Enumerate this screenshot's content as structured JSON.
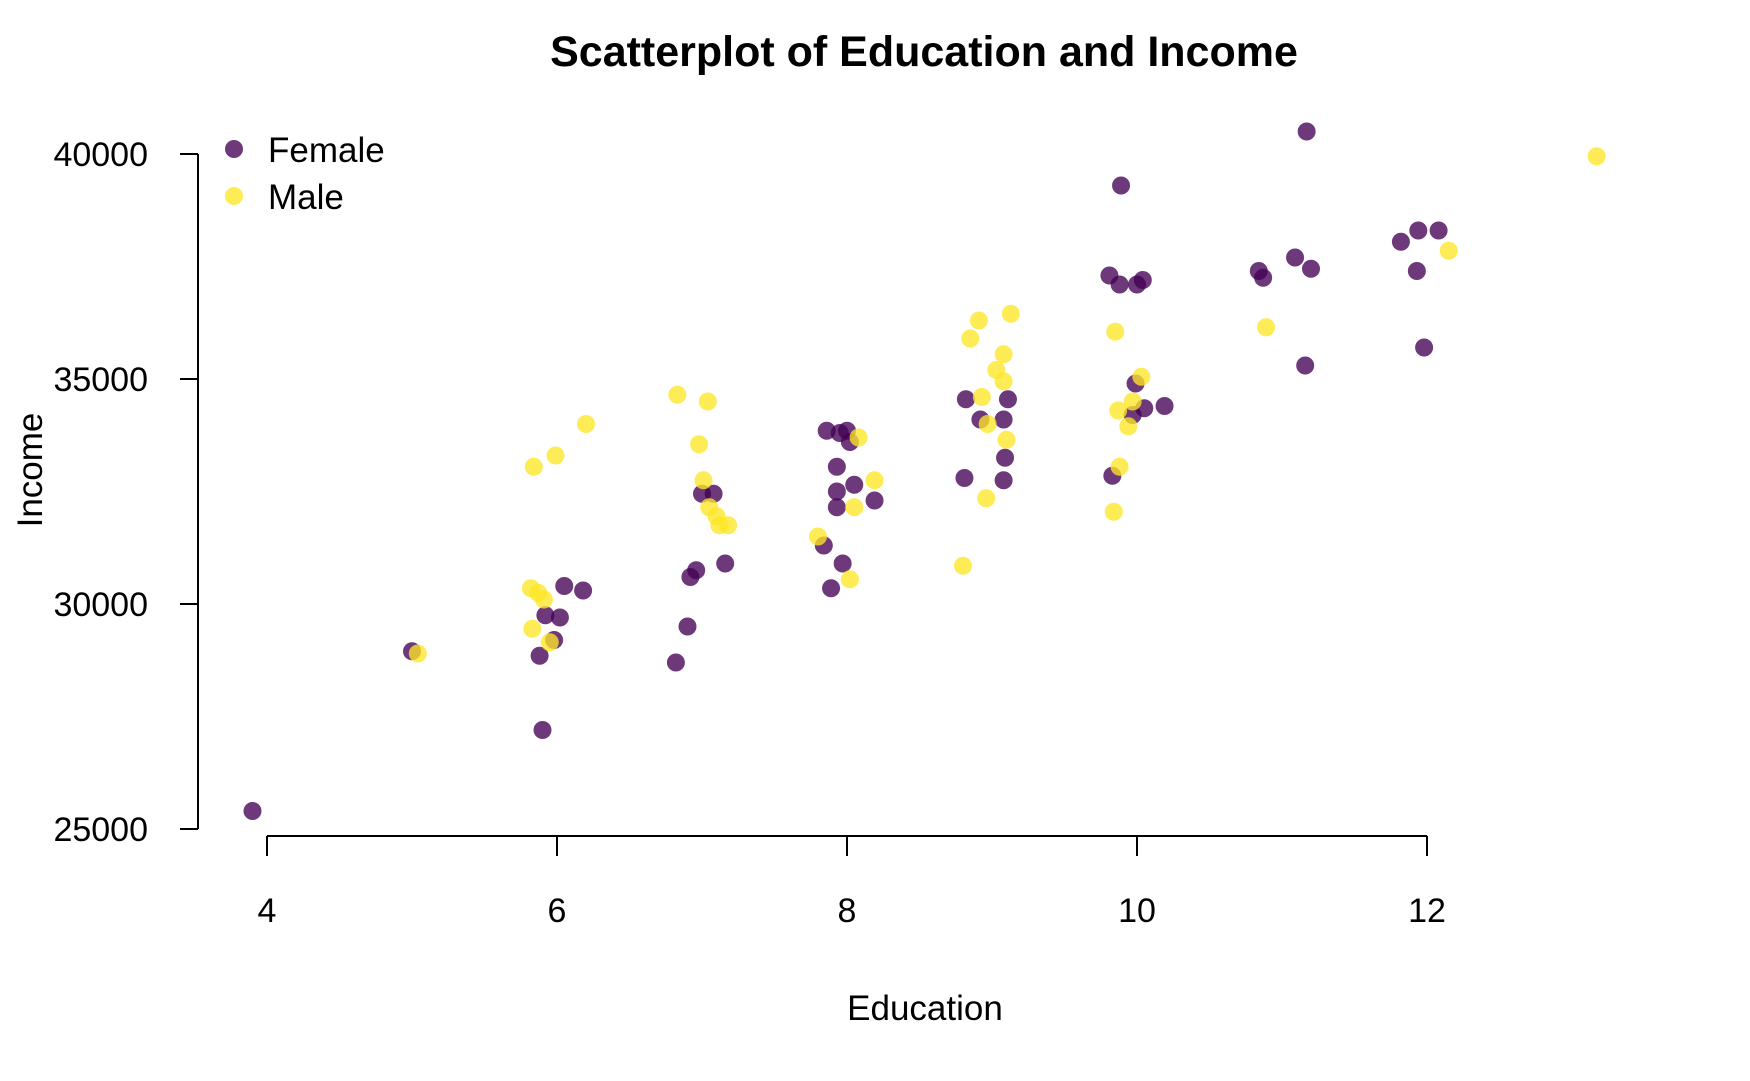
{
  "chart_data": {
    "type": "scatter",
    "title": "Scatterplot of Education and Income",
    "xlabel": "Education",
    "ylabel": "Income",
    "xlim": [
      3.8,
      13.4
    ],
    "ylim": [
      24900,
      41000
    ],
    "x_ticks": [
      4,
      6,
      8,
      10,
      12
    ],
    "y_ticks": [
      25000,
      30000,
      35000,
      40000
    ],
    "legend": {
      "position": "top-left"
    },
    "grid": false,
    "series": [
      {
        "name": "Female",
        "color": "#440154",
        "points": [
          [
            3.9,
            25400
          ],
          [
            5.0,
            28950
          ],
          [
            5.88,
            28850
          ],
          [
            5.9,
            27200
          ],
          [
            5.92,
            29750
          ],
          [
            5.98,
            29200
          ],
          [
            6.02,
            29700
          ],
          [
            6.05,
            30400
          ],
          [
            6.18,
            30300
          ],
          [
            6.82,
            28700
          ],
          [
            6.9,
            29500
          ],
          [
            6.92,
            30600
          ],
          [
            6.96,
            30750
          ],
          [
            7.0,
            32450
          ],
          [
            7.08,
            32450
          ],
          [
            7.16,
            30900
          ],
          [
            7.84,
            31300
          ],
          [
            7.86,
            33850
          ],
          [
            7.89,
            30350
          ],
          [
            7.93,
            32150
          ],
          [
            7.93,
            32500
          ],
          [
            7.93,
            33050
          ],
          [
            7.95,
            33800
          ],
          [
            7.97,
            30900
          ],
          [
            8.0,
            33850
          ],
          [
            8.02,
            33600
          ],
          [
            8.05,
            32650
          ],
          [
            8.19,
            32300
          ],
          [
            8.81,
            32800
          ],
          [
            8.82,
            34550
          ],
          [
            8.92,
            34100
          ],
          [
            9.08,
            32750
          ],
          [
            9.08,
            34100
          ],
          [
            9.09,
            33250
          ],
          [
            9.11,
            34550
          ],
          [
            9.81,
            37300
          ],
          [
            9.83,
            32850
          ],
          [
            9.88,
            37100
          ],
          [
            9.89,
            39300
          ],
          [
            9.97,
            34200
          ],
          [
            9.99,
            34900
          ],
          [
            10.0,
            37100
          ],
          [
            10.04,
            37200
          ],
          [
            10.05,
            34350
          ],
          [
            10.19,
            34400
          ],
          [
            10.84,
            37400
          ],
          [
            10.87,
            37250
          ],
          [
            11.09,
            37700
          ],
          [
            11.16,
            35300
          ],
          [
            11.17,
            40500
          ],
          [
            11.2,
            37450
          ],
          [
            11.82,
            38050
          ],
          [
            11.93,
            37400
          ],
          [
            11.94,
            38300
          ],
          [
            11.98,
            35700
          ],
          [
            12.08,
            38300
          ]
        ]
      },
      {
        "name": "Male",
        "color": "#FDE725",
        "points": [
          [
            5.04,
            28900
          ],
          [
            5.82,
            30350
          ],
          [
            5.83,
            29450
          ],
          [
            5.84,
            33050
          ],
          [
            5.87,
            30250
          ],
          [
            5.91,
            30100
          ],
          [
            5.95,
            29150
          ],
          [
            5.99,
            33300
          ],
          [
            6.2,
            34000
          ],
          [
            6.83,
            34650
          ],
          [
            6.98,
            33550
          ],
          [
            7.01,
            32750
          ],
          [
            7.04,
            34500
          ],
          [
            7.05,
            32150
          ],
          [
            7.1,
            31950
          ],
          [
            7.12,
            31750
          ],
          [
            7.18,
            31750
          ],
          [
            7.8,
            31500
          ],
          [
            8.02,
            30550
          ],
          [
            8.05,
            32150
          ],
          [
            8.08,
            33700
          ],
          [
            8.19,
            32750
          ],
          [
            8.8,
            30850
          ],
          [
            8.85,
            35900
          ],
          [
            8.91,
            36300
          ],
          [
            8.93,
            34600
          ],
          [
            8.96,
            32350
          ],
          [
            8.97,
            34000
          ],
          [
            9.03,
            35200
          ],
          [
            9.08,
            35550
          ],
          [
            9.08,
            34950
          ],
          [
            9.1,
            33650
          ],
          [
            9.13,
            36450
          ],
          [
            9.84,
            32050
          ],
          [
            9.85,
            36050
          ],
          [
            9.87,
            34300
          ],
          [
            9.88,
            33050
          ],
          [
            9.94,
            33950
          ],
          [
            9.97,
            34500
          ],
          [
            10.03,
            35050
          ],
          [
            10.89,
            36150
          ],
          [
            12.15,
            37850
          ],
          [
            13.17,
            39950
          ]
        ]
      }
    ]
  }
}
